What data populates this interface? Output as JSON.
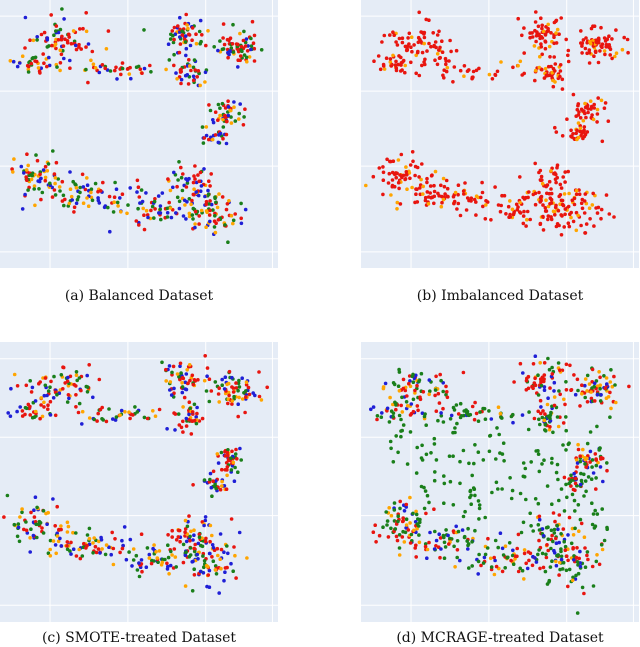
{
  "chart_data": [
    {
      "type": "scatter",
      "caption": "(a) Balanced Dataset",
      "series": [
        {
          "color": "#e8150f"
        },
        {
          "color": "#ffa500"
        },
        {
          "color": "#1a7f1a"
        },
        {
          "color": "#1f1fd6"
        }
      ],
      "class_mix": [
        0.28,
        0.2,
        0.28,
        0.24
      ],
      "grid": true
    },
    {
      "type": "scatter",
      "caption": "(b) Imbalanced Dataset",
      "series": [
        {
          "color": "#e8150f"
        },
        {
          "color": "#ffa500"
        }
      ],
      "class_mix": [
        0.78,
        0.22,
        0,
        0
      ],
      "grid": true
    },
    {
      "type": "scatter",
      "caption": "(c) SMOTE-treated Dataset",
      "series": [
        {
          "color": "#e8150f"
        },
        {
          "color": "#ffa500"
        },
        {
          "color": "#1a7f1a"
        },
        {
          "color": "#1f1fd6"
        }
      ],
      "class_mix": [
        0.3,
        0.22,
        0.26,
        0.22
      ],
      "grid": true
    },
    {
      "type": "scatter",
      "caption": "(d) MCRAGE-treated Dataset",
      "series": [
        {
          "color": "#e8150f"
        },
        {
          "color": "#ffa500"
        },
        {
          "color": "#1a7f1a"
        },
        {
          "color": "#1f1fd6"
        }
      ],
      "class_mix": [
        0.32,
        0.18,
        0.34,
        0.16
      ],
      "extra_scatter_class": 2,
      "grid": true
    }
  ]
}
